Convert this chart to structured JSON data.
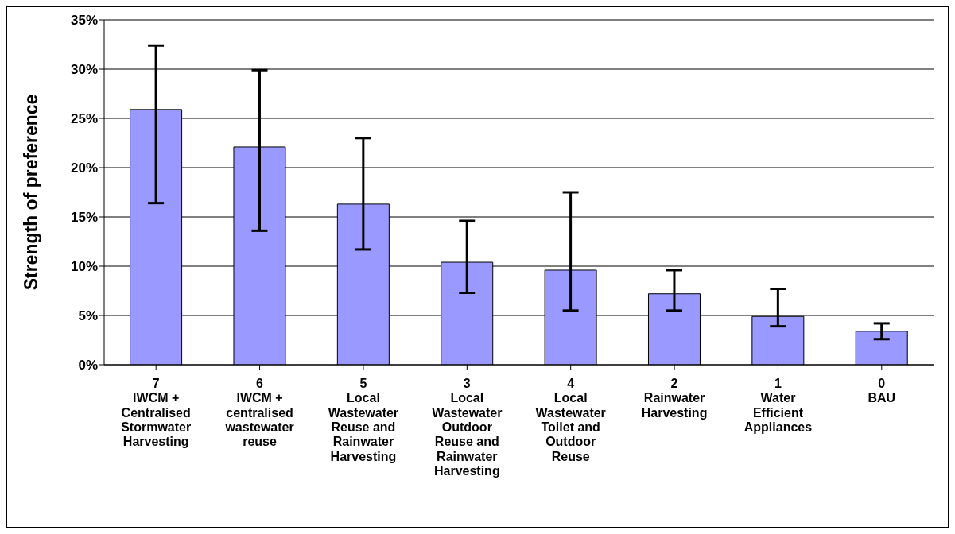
{
  "chart_data": {
    "type": "bar",
    "ylabel": "Strength of preference",
    "categories": [
      "7\nIWCM +\nCentralised\nStormwater\nHarvesting",
      "6\nIWCM +\ncentralised\nwastewater\nreuse",
      "5\nLocal\nWastewater\nReuse and\nRainwater\nHarvesting",
      "3\nLocal\nWastewater\nOutdoor\nReuse and\nRainwater\nHarvesting",
      "4\nLocal\nWastewater\nToilet and\nOutdoor\nReuse",
      "2\nRainwater\nHarvesting",
      "1\nWater\nEfficient\nAppliances",
      "0\nBAU"
    ],
    "values": [
      25.9,
      22.1,
      16.3,
      10.4,
      9.6,
      7.2,
      4.9,
      3.4
    ],
    "errors": [
      [
        16.4,
        32.4
      ],
      [
        13.6,
        29.9
      ],
      [
        11.7,
        23.0
      ],
      [
        7.3,
        14.6
      ],
      [
        5.5,
        17.5
      ],
      [
        5.5,
        9.6
      ],
      [
        3.9,
        7.7
      ],
      [
        2.6,
        4.2
      ]
    ],
    "color": "#9999ff",
    "ylim": [
      0,
      35
    ],
    "yticks": [
      {
        "value": 0,
        "label": "0%"
      },
      {
        "value": 5,
        "label": "5%"
      },
      {
        "value": 10,
        "label": "10%"
      },
      {
        "value": 15,
        "label": "15%"
      },
      {
        "value": 20,
        "label": "20%"
      },
      {
        "value": 25,
        "label": "25%"
      },
      {
        "value": 30,
        "label": "30%"
      },
      {
        "value": 35,
        "label": "35%"
      }
    ],
    "grid": "y"
  }
}
